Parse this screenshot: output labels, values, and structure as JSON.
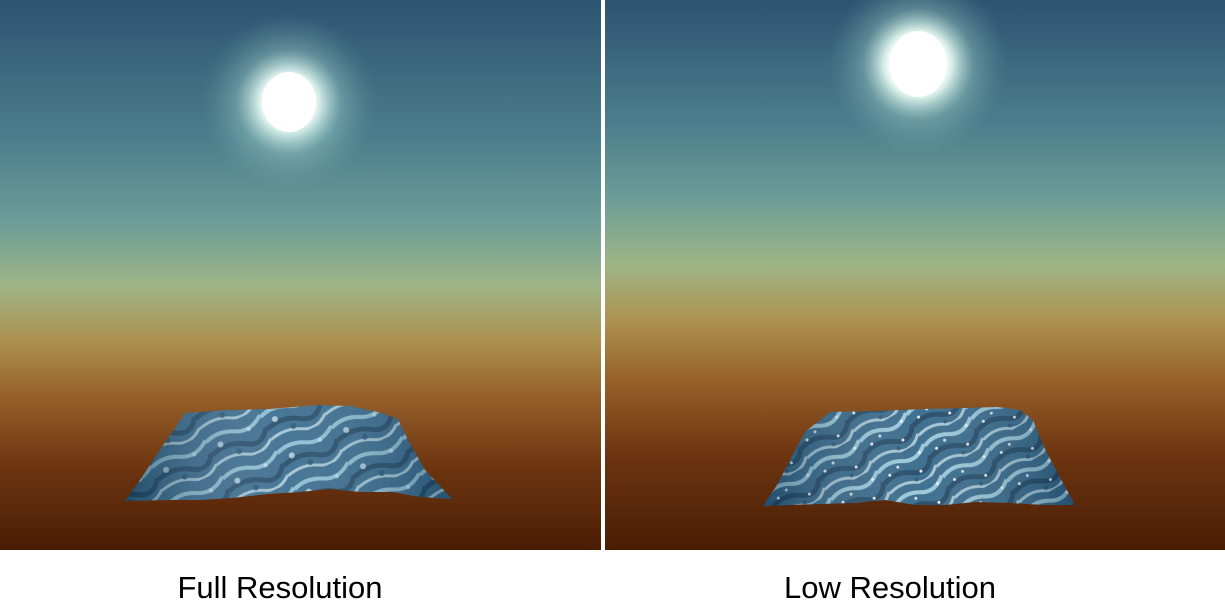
{
  "captions": {
    "full": "Full Resolution",
    "low": "Low Resolution"
  },
  "colors": {
    "sky_top": "#2f5570",
    "sky_mid": "#5d8f93",
    "horizon_light": "#9fb586",
    "horizon_orange": "#b0874a",
    "ground_brown": "#8c5018",
    "ground_dark": "#4a1e04",
    "sun_core": "#ffffff",
    "sun_glow": "#dff7f2",
    "terrain_base": "#2f6488",
    "terrain_highlight": "#bfe3ee",
    "terrain_shadow": "#143a57",
    "divider": "#ffffff"
  }
}
